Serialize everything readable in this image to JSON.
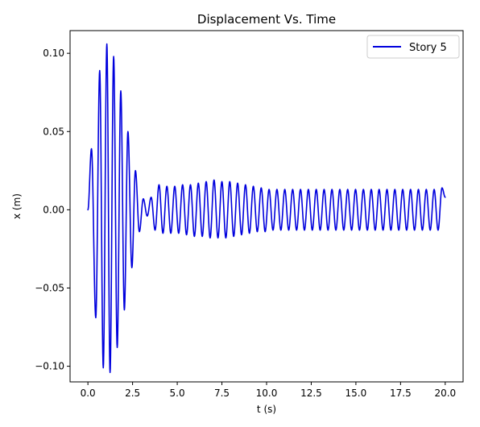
{
  "chart_data": {
    "type": "line",
    "title": "Displacement Vs. Time",
    "xlabel": "t (s)",
    "ylabel": "x (m)",
    "xlim": [
      -0.999,
      21.0
    ],
    "ylim": [
      -0.11,
      0.1145
    ],
    "xticks": [
      0,
      2.5,
      5,
      7.5,
      10,
      12.5,
      15,
      17.5,
      20
    ],
    "xtick_labels": [
      "0.0",
      "2.5",
      "5.0",
      "7.5",
      "10.0",
      "12.5",
      "15.0",
      "17.5",
      "20.0"
    ],
    "yticks": [
      -0.1,
      -0.05,
      0,
      0.05,
      0.1
    ],
    "ytick_labels": [
      "−0.10",
      "−0.05",
      "0.00",
      "0.05",
      "0.10"
    ],
    "grid": false,
    "legend": {
      "position": "top-right"
    },
    "series": [
      {
        "name": "Story 5",
        "color": "#0000dd",
        "x": [
          0,
          0.2,
          0.44,
          0.66,
          0.86,
          1.06,
          1.24,
          1.44,
          1.64,
          1.84,
          2.04,
          2.24,
          2.46,
          2.66,
          2.88,
          3.1,
          3.32,
          3.54,
          3.76,
          3.98,
          4.2,
          4.42,
          4.64,
          4.86,
          5.08,
          5.3,
          5.52,
          5.74,
          5.96,
          6.18,
          6.4,
          6.62,
          6.84,
          7.06,
          7.28,
          7.5,
          7.72,
          7.94,
          8.16,
          8.38,
          8.6,
          8.82,
          9.04,
          9.26,
          9.48,
          9.7,
          9.92,
          10.14,
          10.36,
          10.58,
          10.8,
          11.02,
          11.24,
          11.46,
          11.68,
          11.9,
          12.12,
          12.34,
          12.56,
          12.78,
          13.0,
          13.22,
          13.44,
          13.66,
          13.88,
          14.1,
          14.32,
          14.54,
          14.76,
          14.98,
          15.2,
          15.42,
          15.64,
          15.86,
          16.08,
          16.3,
          16.52,
          16.74,
          16.96,
          17.18,
          17.4,
          17.62,
          17.84,
          18.06,
          18.28,
          18.5,
          18.72,
          18.94,
          19.16,
          19.38,
          19.6,
          19.82,
          20.0
        ],
        "y": [
          0,
          0.039,
          -0.069,
          0.089,
          -0.101,
          0.106,
          -0.104,
          0.098,
          -0.088,
          0.076,
          -0.064,
          0.05,
          -0.037,
          0.025,
          -0.014,
          0.007,
          -0.004,
          0.008,
          -0.013,
          0.016,
          -0.015,
          0.015,
          -0.015,
          0.015,
          -0.015,
          0.016,
          -0.016,
          0.016,
          -0.017,
          0.017,
          -0.017,
          0.018,
          -0.018,
          0.019,
          -0.018,
          0.018,
          -0.018,
          0.018,
          -0.017,
          0.017,
          -0.016,
          0.016,
          -0.015,
          0.015,
          -0.014,
          0.014,
          -0.014,
          0.013,
          -0.013,
          0.013,
          -0.013,
          0.013,
          -0.013,
          0.013,
          -0.013,
          0.013,
          -0.013,
          0.013,
          -0.013,
          0.013,
          -0.013,
          0.013,
          -0.013,
          0.013,
          -0.013,
          0.013,
          -0.013,
          0.013,
          -0.013,
          0.013,
          -0.013,
          0.013,
          -0.013,
          0.013,
          -0.013,
          0.013,
          -0.013,
          0.013,
          -0.013,
          0.013,
          -0.013,
          0.013,
          -0.013,
          0.013,
          -0.013,
          0.013,
          -0.013,
          0.013,
          -0.013,
          0.013,
          -0.013,
          0.014,
          0.008
        ]
      }
    ]
  }
}
